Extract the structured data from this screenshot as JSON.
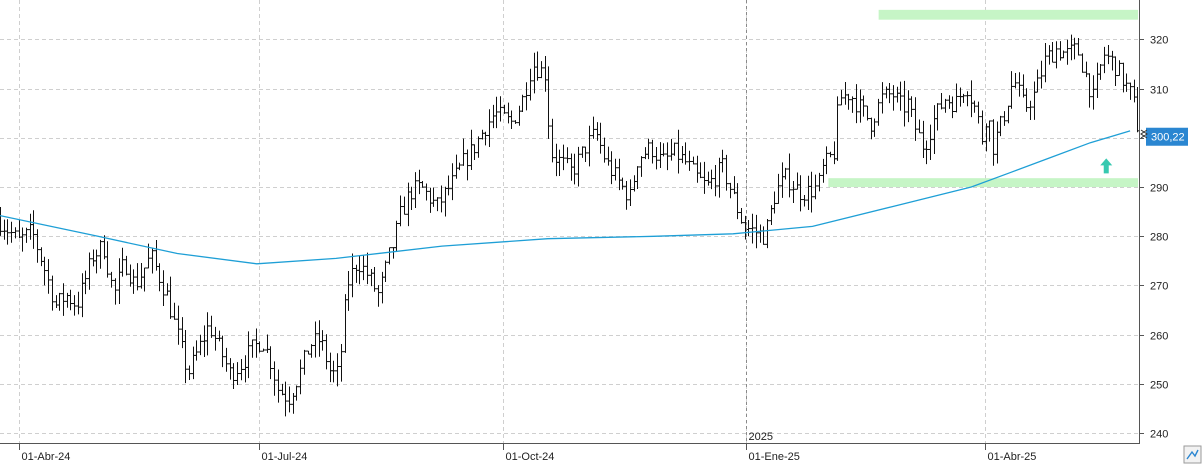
{
  "chart_data": {
    "type": "ohlc",
    "x_ticks": [
      {
        "label": "01-Abr-24",
        "day": 0
      },
      {
        "label": "01-Jul-24",
        "day": 91
      },
      {
        "label": "01-Oct-24",
        "day": 183
      },
      {
        "label": "01-Ene-25",
        "day": 275
      },
      {
        "label": "01-Abr-25",
        "day": 365
      }
    ],
    "year_label": {
      "label": "2025",
      "day": 275
    },
    "y_ticks": [
      240,
      250,
      260,
      270,
      280,
      290,
      300,
      310,
      320
    ],
    "ylim": [
      238,
      328
    ],
    "xlim_days": [
      -7,
      423
    ],
    "grid": true,
    "last_price": {
      "value": 300.22,
      "label": "300,22",
      "color": "#2a86d1"
    },
    "moving_average": {
      "color": "#1e9fd6",
      "points": [
        [
          -7,
          284.2
        ],
        [
          30,
          280
        ],
        [
          60,
          276.5
        ],
        [
          90,
          274.4
        ],
        [
          120,
          275.5
        ],
        [
          160,
          278
        ],
        [
          200,
          279.5
        ],
        [
          240,
          280
        ],
        [
          270,
          280.5
        ],
        [
          300,
          282
        ],
        [
          330,
          286
        ],
        [
          345,
          288
        ],
        [
          360,
          290
        ],
        [
          375,
          293
        ],
        [
          390,
          296
        ],
        [
          405,
          299
        ],
        [
          420,
          301.4
        ]
      ]
    },
    "zones": [
      {
        "name": "resistance",
        "day_from": 325,
        "day_to": 423,
        "price_from": 324,
        "price_to": 326,
        "color": "#c6f5c6"
      },
      {
        "name": "support",
        "day_from": 306,
        "day_to": 423,
        "price_from": 290,
        "price_to": 291.8,
        "color": "#c6f5c6"
      }
    ],
    "arrow": {
      "day": 411,
      "price": 294,
      "color": "#36c9b0"
    },
    "keypoints": [
      [
        -7,
        283
      ],
      [
        0,
        279
      ],
      [
        5,
        281
      ],
      [
        10,
        273
      ],
      [
        14,
        266
      ],
      [
        18,
        268
      ],
      [
        22,
        266
      ],
      [
        28,
        276
      ],
      [
        32,
        278
      ],
      [
        36,
        268
      ],
      [
        40,
        275
      ],
      [
        44,
        270
      ],
      [
        50,
        276
      ],
      [
        56,
        268
      ],
      [
        60,
        260
      ],
      [
        64,
        252
      ],
      [
        68,
        257
      ],
      [
        72,
        262
      ],
      [
        76,
        257
      ],
      [
        80,
        252
      ],
      [
        84,
        254
      ],
      [
        88,
        257
      ],
      [
        92,
        259
      ],
      [
        95,
        255
      ],
      [
        98,
        249
      ],
      [
        102,
        247
      ],
      [
        106,
        252
      ],
      [
        110,
        258
      ],
      [
        114,
        259
      ],
      [
        118,
        252
      ],
      [
        121,
        252
      ],
      [
        124,
        270
      ],
      [
        128,
        275
      ],
      [
        132,
        272
      ],
      [
        136,
        268
      ],
      [
        140,
        276
      ],
      [
        142,
        279
      ],
      [
        144,
        284
      ],
      [
        148,
        289
      ],
      [
        152,
        290
      ],
      [
        158,
        286
      ],
      [
        164,
        291
      ],
      [
        168,
        295
      ],
      [
        172,
        298
      ],
      [
        176,
        302
      ],
      [
        180,
        305
      ],
      [
        186,
        303
      ],
      [
        190,
        307
      ],
      [
        194,
        315
      ],
      [
        199,
        313
      ],
      [
        201,
        297
      ],
      [
        205,
        295
      ],
      [
        209,
        293
      ],
      [
        214,
        298
      ],
      [
        218,
        301
      ],
      [
        222,
        295
      ],
      [
        228,
        290
      ],
      [
        231,
        288
      ],
      [
        234,
        296
      ],
      [
        239,
        298
      ],
      [
        243,
        295
      ],
      [
        248,
        297
      ],
      [
        252,
        295
      ],
      [
        256,
        292
      ],
      [
        260,
        290
      ],
      [
        266,
        294
      ],
      [
        270,
        288
      ],
      [
        274,
        282
      ],
      [
        278,
        281
      ],
      [
        282,
        280
      ],
      [
        286,
        289
      ],
      [
        290,
        292
      ],
      [
        295,
        289
      ],
      [
        298,
        289
      ],
      [
        302,
        290
      ],
      [
        304,
        294
      ],
      [
        308,
        297
      ],
      [
        310,
        308
      ],
      [
        314,
        309
      ],
      [
        318,
        306
      ],
      [
        322,
        303
      ],
      [
        326,
        308
      ],
      [
        330,
        309
      ],
      [
        334,
        306
      ],
      [
        336,
        307
      ],
      [
        338,
        303
      ],
      [
        342,
        298
      ],
      [
        346,
        304
      ],
      [
        350,
        308
      ],
      [
        354,
        307
      ],
      [
        358,
        311
      ],
      [
        362,
        305
      ],
      [
        364,
        300
      ],
      [
        366,
        306
      ],
      [
        368,
        298
      ],
      [
        372,
        304
      ],
      [
        376,
        312
      ],
      [
        380,
        306
      ],
      [
        384,
        309
      ],
      [
        388,
        316
      ],
      [
        392,
        318
      ],
      [
        396,
        317
      ],
      [
        400,
        318
      ],
      [
        403,
        313
      ],
      [
        406,
        308
      ],
      [
        410,
        317
      ],
      [
        414,
        315
      ],
      [
        418,
        311
      ],
      [
        421,
        308
      ],
      [
        423,
        302
      ]
    ]
  }
}
